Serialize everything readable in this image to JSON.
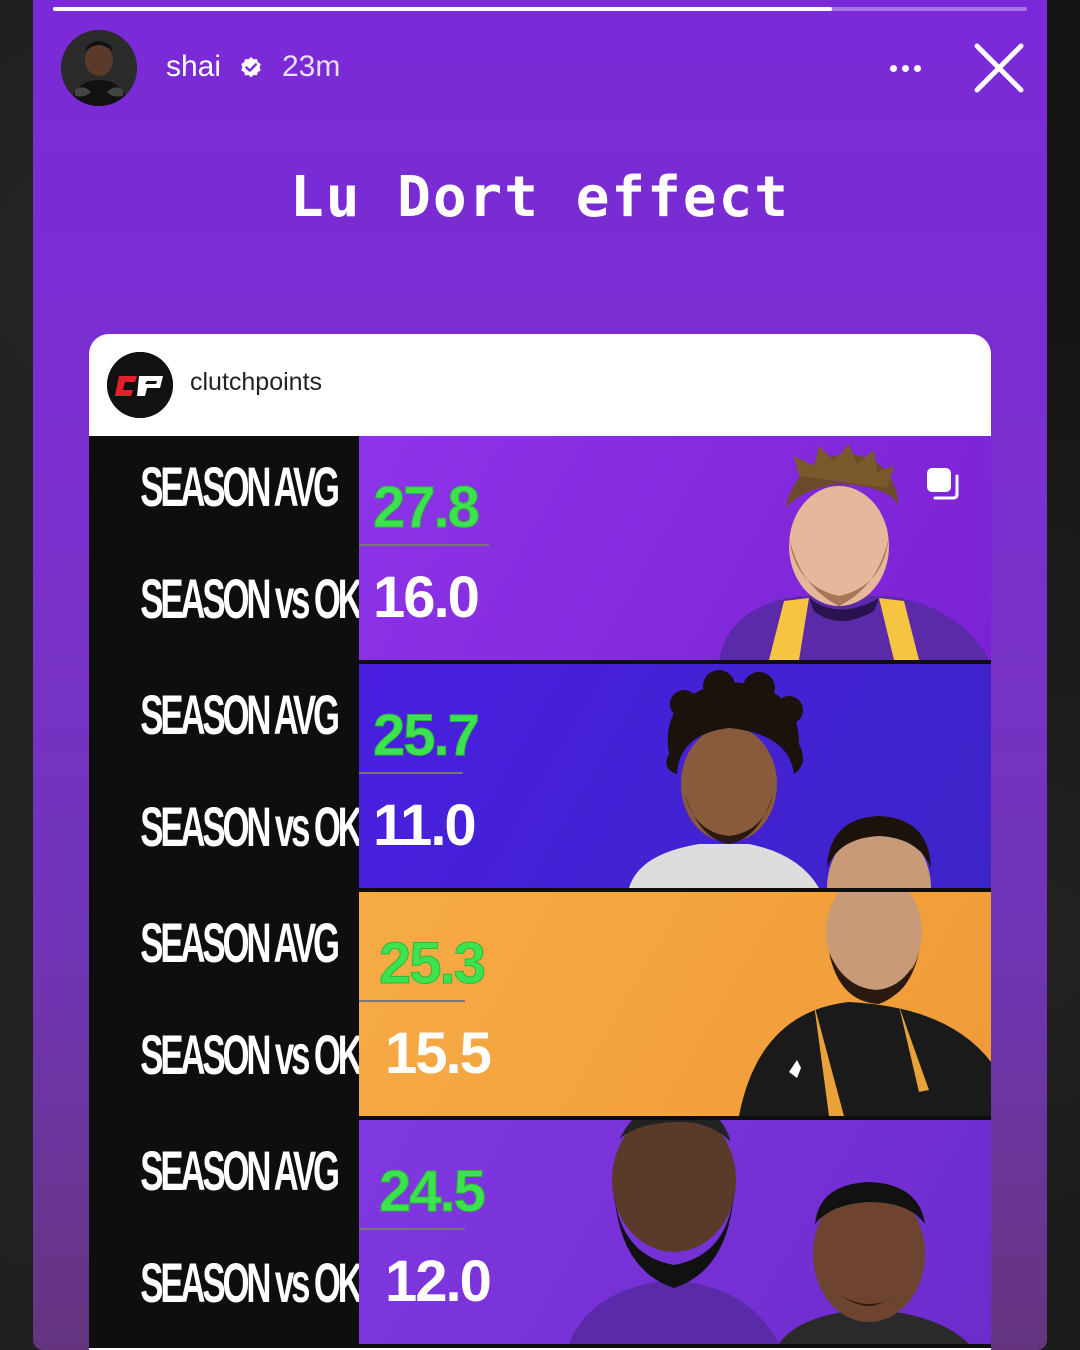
{
  "story": {
    "username": "shai",
    "time": "23m",
    "title": "Lu Dort effect",
    "progress": 0.8
  },
  "post": {
    "username": "clutchpoints",
    "logo_text": "CP"
  },
  "labels": {
    "avg": "SEASON AVG",
    "vs": "SEASON vs OKC"
  },
  "rows": [
    {
      "avg": "27.8",
      "vs": "16.0",
      "bg": "#8a2be2"
    },
    {
      "avg": "25.7",
      "vs": "11.0",
      "bg": "#4a1fe0"
    },
    {
      "avg": "25.3",
      "vs": "15.5",
      "bg": "#f4a53e"
    },
    {
      "avg": "24.5",
      "vs": "12.0",
      "bg": "#7a35d8"
    }
  ],
  "colors": {
    "accent_green": "#3de24f",
    "story_purple": "#7a2ad8"
  }
}
